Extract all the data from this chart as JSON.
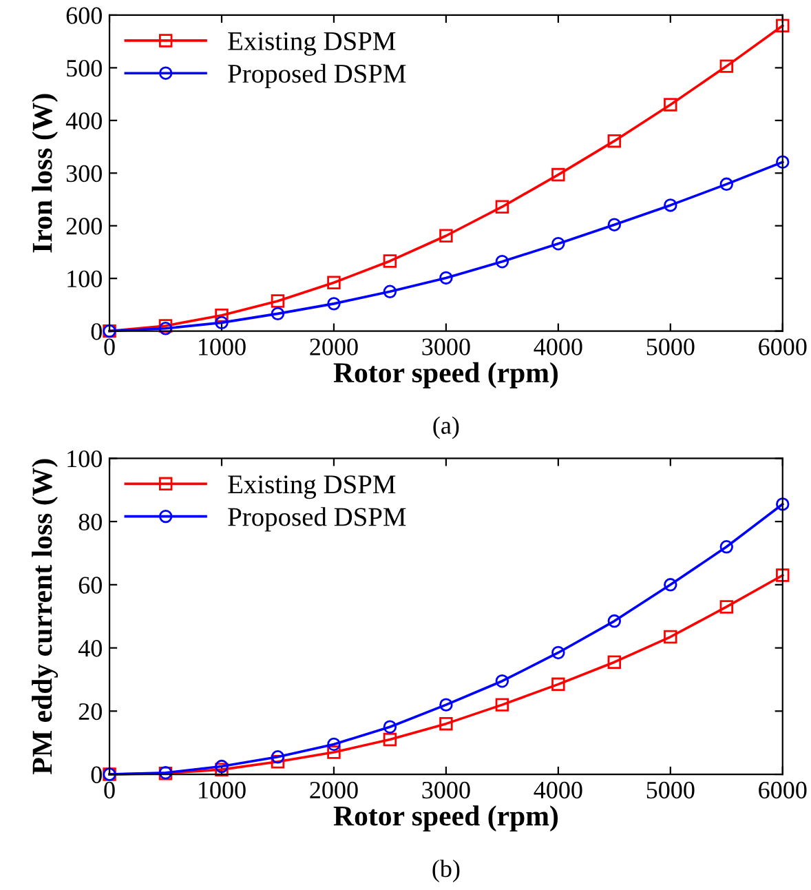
{
  "chart_data": [
    {
      "type": "line",
      "xlabel": "Rotor speed (rpm)",
      "ylabel": "Iron loss (W)",
      "annotations": [
        "(a)"
      ],
      "x": [
        0,
        500,
        1000,
        1500,
        2000,
        2500,
        3000,
        3500,
        4000,
        4500,
        5000,
        5500,
        6000
      ],
      "series": [
        {
          "name": "Existing DSPM",
          "color": "#ff0000",
          "marker": "square",
          "values": [
            0,
            10,
            30,
            57,
            92,
            133,
            181,
            236,
            297,
            361,
            430,
            503,
            580
          ]
        },
        {
          "name": "Proposed DSPM",
          "color": "#0000ff",
          "marker": "circle",
          "values": [
            0,
            5,
            16,
            33,
            52,
            75,
            101,
            132,
            166,
            202,
            239,
            279,
            321
          ]
        }
      ],
      "xlim": [
        0,
        6000
      ],
      "xticks": [
        0,
        1000,
        2000,
        3000,
        4000,
        5000,
        6000
      ],
      "ylim": [
        0,
        600
      ],
      "yticks": [
        0,
        100,
        200,
        300,
        400,
        500,
        600
      ],
      "legend": "top left",
      "grid": false
    },
    {
      "type": "line",
      "xlabel": "Rotor speed (rpm)",
      "ylabel": "PM eddy current loss (W)",
      "annotations": [
        "(b)"
      ],
      "x": [
        0,
        500,
        1000,
        1500,
        2000,
        2500,
        3000,
        3500,
        4000,
        4500,
        5000,
        5500,
        6000
      ],
      "series": [
        {
          "name": "Existing DSPM",
          "color": "#ff0000",
          "marker": "square",
          "values": [
            0,
            0.3,
            1.5,
            4,
            7,
            11,
            16,
            22,
            28.5,
            35.5,
            43.5,
            53,
            63
          ]
        },
        {
          "name": "Proposed DSPM",
          "color": "#0000ff",
          "marker": "circle",
          "values": [
            0,
            0.5,
            2.5,
            5.5,
            9.5,
            15,
            22,
            29.5,
            38.5,
            48.5,
            60,
            72,
            85.5
          ]
        }
      ],
      "xlim": [
        0,
        6000
      ],
      "xticks": [
        0,
        1000,
        2000,
        3000,
        4000,
        5000,
        6000
      ],
      "ylim": [
        0,
        100
      ],
      "yticks": [
        0,
        20,
        40,
        60,
        80,
        100
      ],
      "legend": "top left",
      "grid": false
    }
  ]
}
